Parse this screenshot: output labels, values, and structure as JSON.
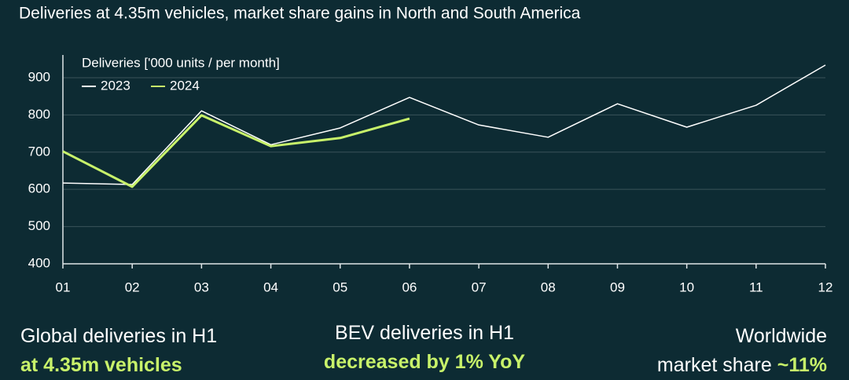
{
  "chart_data": {
    "type": "line",
    "subtitle": "Deliveries at 4.35m vehicles, market share gains in North and South America",
    "legend_title": "Deliveries ['000 units / per month]",
    "categories": [
      "01",
      "02",
      "03",
      "04",
      "05",
      "06",
      "07",
      "08",
      "09",
      "10",
      "11",
      "12"
    ],
    "series": [
      {
        "name": "2023",
        "color": "#ffffff",
        "values": [
          617,
          613,
          811,
          720,
          765,
          847,
          773,
          740,
          830,
          767,
          826,
          934
        ]
      },
      {
        "name": "2024",
        "color": "#c8f26a",
        "values": [
          702,
          607,
          799,
          716,
          738,
          790,
          null,
          null,
          null,
          null,
          null,
          null
        ]
      }
    ],
    "ylim": [
      400,
      940
    ],
    "yticks": [
      400,
      500,
      600,
      700,
      800,
      900
    ],
    "grid": true,
    "legend": "upper left"
  },
  "stats": [
    {
      "label": "Global deliveries in H1",
      "value": "at 4.35m vehicles"
    },
    {
      "label": "BEV deliveries in H1",
      "value": "decreased by 1% YoY"
    },
    {
      "label": "Worldwide",
      "extra": "market share",
      "value": "~11%"
    }
  ]
}
